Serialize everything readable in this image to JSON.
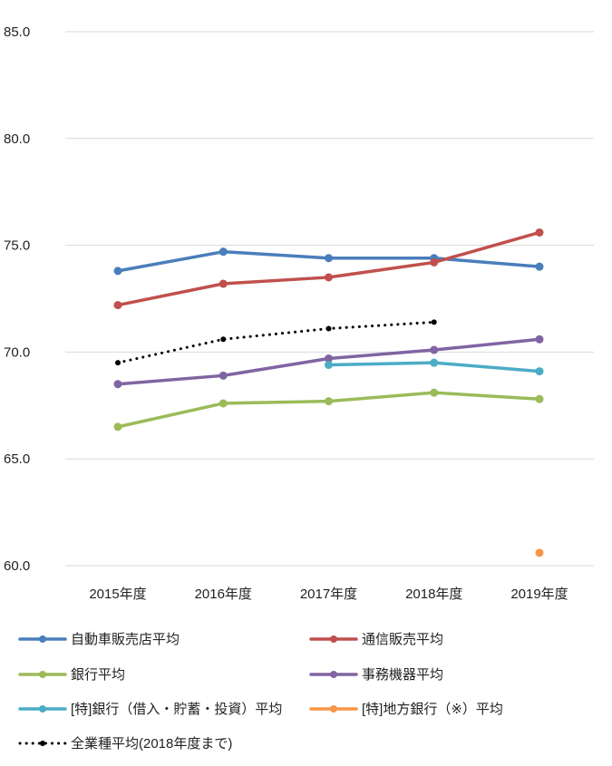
{
  "chart_data": {
    "type": "line",
    "categories": [
      "2015年度",
      "2016年度",
      "2017年度",
      "2018年度",
      "2019年度"
    ],
    "ylim": [
      60.0,
      85.0
    ],
    "yticks": [
      "60.0",
      "65.0",
      "70.0",
      "75.0",
      "80.0",
      "85.0"
    ],
    "grid": true,
    "legend_position": "bottom",
    "series": [
      {
        "name": "自動車販売店平均",
        "color": "#4a7ebb",
        "style": "solid",
        "values": [
          73.8,
          74.7,
          74.4,
          74.4,
          74.0
        ]
      },
      {
        "name": "通信販売平均",
        "color": "#c0504d",
        "style": "solid",
        "values": [
          72.2,
          73.2,
          73.5,
          74.2,
          75.6
        ]
      },
      {
        "name": "銀行平均",
        "color": "#9bbb59",
        "style": "solid",
        "values": [
          66.5,
          67.6,
          67.7,
          68.1,
          67.8
        ]
      },
      {
        "name": "事務機器平均",
        "color": "#8064a2",
        "style": "solid",
        "values": [
          68.5,
          68.9,
          69.7,
          70.1,
          70.6
        ]
      },
      {
        "name": "[特]銀行（借入・貯蓄・投資）平均",
        "color": "#4bacc6",
        "style": "solid",
        "values": [
          null,
          null,
          69.4,
          69.5,
          69.1
        ]
      },
      {
        "name": "[特]地方銀行（※）平均",
        "color": "#f79646",
        "style": "solid",
        "values": [
          null,
          null,
          null,
          null,
          60.6
        ]
      },
      {
        "name": "全業種平均(2018年度まで)",
        "color": "#000000",
        "style": "dotted",
        "values": [
          69.5,
          70.6,
          71.1,
          71.4,
          null
        ]
      }
    ]
  }
}
